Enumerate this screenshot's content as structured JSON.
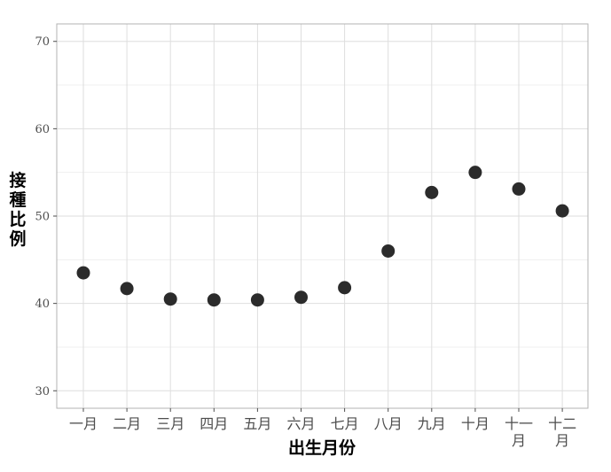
{
  "chart_data": {
    "type": "scatter",
    "title": "",
    "xlabel": "出生月份",
    "ylabel": "接種比例",
    "ylim": [
      28,
      72
    ],
    "yticks": [
      30,
      40,
      50,
      60,
      70
    ],
    "grid": true,
    "categories": [
      {
        "label": "一月",
        "lines": [
          "一月"
        ]
      },
      {
        "label": "二月",
        "lines": [
          "二月"
        ]
      },
      {
        "label": "三月",
        "lines": [
          "三月"
        ]
      },
      {
        "label": "四月",
        "lines": [
          "四月"
        ]
      },
      {
        "label": "五月",
        "lines": [
          "五月"
        ]
      },
      {
        "label": "六月",
        "lines": [
          "六月"
        ]
      },
      {
        "label": "七月",
        "lines": [
          "七月"
        ]
      },
      {
        "label": "八月",
        "lines": [
          "八月"
        ]
      },
      {
        "label": "九月",
        "lines": [
          "九月"
        ]
      },
      {
        "label": "十月",
        "lines": [
          "十月"
        ]
      },
      {
        "label": "十一月",
        "lines": [
          "十一",
          "月"
        ]
      },
      {
        "label": "十二月",
        "lines": [
          "十二",
          "月"
        ]
      }
    ],
    "values": [
      43.5,
      41.7,
      40.5,
      40.4,
      40.4,
      40.7,
      41.8,
      46.0,
      52.7,
      55.0,
      53.1,
      50.6
    ],
    "colors": {
      "point": "#2b2b2b",
      "panel_border": "#b3b3b3",
      "grid_major": "#dedede",
      "grid_minor": "#efefef"
    }
  }
}
